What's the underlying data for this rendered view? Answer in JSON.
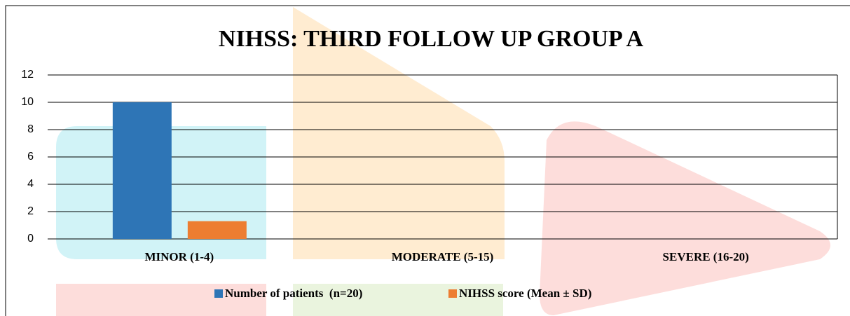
{
  "chart_data": {
    "type": "bar",
    "title": "NIHSS: THIRD FOLLOW UP GROUP A",
    "categories": [
      "MINOR (1-4)",
      "MODERATE (5-15)",
      "SEVERE (16-20)"
    ],
    "series": [
      {
        "name": "Number of patients  (n=20)",
        "color": "#2e75b6",
        "values": [
          10,
          0,
          0
        ]
      },
      {
        "name": "NIHSS score (Mean ± SD)",
        "color": "#ed7d31",
        "values": [
          1.3,
          0,
          0
        ]
      }
    ],
    "ylim": [
      0,
      12
    ],
    "yticks": [
      0,
      2,
      4,
      6,
      8,
      10,
      12
    ],
    "grid": true,
    "legend": "bottom"
  }
}
